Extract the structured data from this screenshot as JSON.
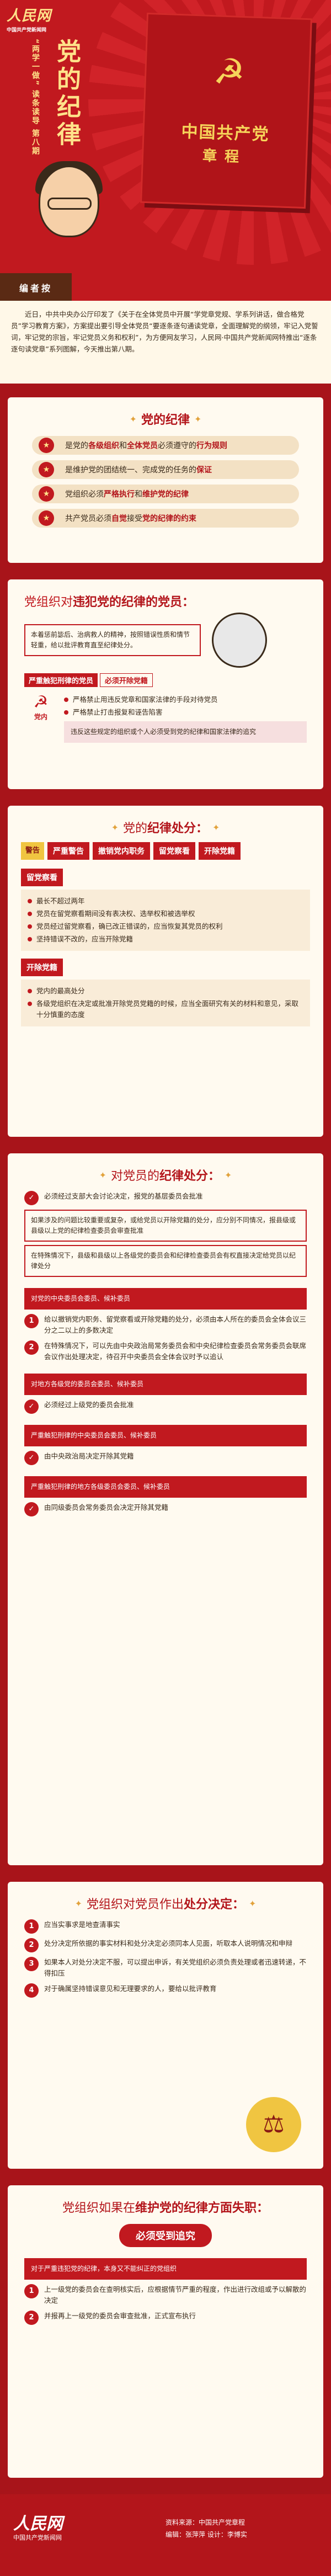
{
  "brand": {
    "name": "人民网",
    "sub": "中国共产党新闻网"
  },
  "series": {
    "label": "“两学一做”",
    "vertical": "读条读导",
    "issue": "第八期"
  },
  "hero": {
    "title": "党的纪律",
    "book_title": "中国共产党",
    "book_sub": "章程",
    "podium": "编者按"
  },
  "intro": "近日，中共中央办公厅印发了《关于在全体党员中开展“学党章党规、学系列讲话，做合格党员”学习教育方案》，方案提出要引导全体党员“要逐条逐句通读党章，全面理解党的纲领，牢记入党誓词，牢记党的宗旨，牢记党员义务和权利”，为方便网友学习，人民网·中国共产党新闻网特推出“逐条逐句读党章”系列图解，今天推出第八期。",
  "s1": {
    "title": "党的纪律",
    "items": [
      {
        "pre": "是党的",
        "b1": "各级组织",
        "mid": "和",
        "b2": "全体党员",
        "post": "必须遵守的",
        "b3": "行为规则"
      },
      {
        "pre": "是维护党的团结统一、完成党的任务的",
        "b1": "保证",
        "mid": "",
        "b2": "",
        "post": "",
        "b3": ""
      },
      {
        "pre": "党组织必须",
        "b1": "严格执行",
        "mid": "和",
        "b2": "维护党的纪律",
        "post": "",
        "b3": ""
      },
      {
        "pre": "共产党员必须",
        "b1": "自觉",
        "mid": "接受",
        "b2": "党的纪律的约束",
        "post": "",
        "b3": ""
      }
    ]
  },
  "s2": {
    "title_pre": "党组织对",
    "title_b": "违犯党的纪律的党员",
    "title_post": "：",
    "desc": "本着惩前毖后、治病救人的精神，按照错误性质和情节轻重，给以批评教育直至纪律处分。",
    "tag1": "严重触犯刑律的党员",
    "tag2": "必须开除党籍",
    "inner": "党内",
    "l1": "严格禁止用违反党章和国家法律的手段对待党员",
    "l2": "严格禁止打击报复和诬告陷害",
    "l3": "违反这些规定的组织或个人必须受到党的纪律和国家法律的追究"
  },
  "s3": {
    "title_pre": "党的",
    "title_b": "纪律处分",
    "title_post": "：",
    "tabs": [
      "警告",
      "严重警告",
      "撤销党内职务",
      "留党察看",
      "开除党籍"
    ],
    "h1": "留党察看",
    "items1": [
      "最长不超过两年",
      "党员在留党察看期间没有表决权、选举权和被选举权",
      "党员经过留党察看，确已改正错误的，应当恢复其党员的权利",
      "坚持错误不改的，应当开除党籍"
    ],
    "h2": "开除党籍",
    "items2": [
      "党内的最高处分",
      "各级党组织在决定或批准开除党员党籍的时候，应当全面研究有关的材料和意见，采取十分慎重的态度"
    ]
  },
  "s4": {
    "title_pre": "对党员的",
    "title_b": "纪律处分",
    "title_post": "：",
    "a1": "必须经过支部大会讨论决定，报党的基层委员会批准",
    "a2": "如果涉及的问题比较重要或复杂，或给党员以开除党籍的处分，应分别不同情况，报县级或县级以上党的纪律检查委员会审查批准",
    "a3": "在特殊情况下，县级和县级以上各级党的委员会和纪律检查委员会有权直接决定给党员以纪律处分",
    "b1": "对党的中央委员会委员、候补委员",
    "b2": "给以撤销党内职务、留党察看或开除党籍的处分，必须由本人所在的委员会全体会议三分之二以上的多数决定",
    "b3": "在特殊情况下，可以先由中央政治局常务委员会和中央纪律检查委员会常务委员会联席会议作出处理决定，待召开中央委员会全体会议时予以追认",
    "c1": "对地方各级党的委员会委员、候补委员",
    "c2": "必须经过上级党的委员会批准",
    "d1": "严重触犯刑律的中央委员会委员、候补委员",
    "d2": "由中央政治局决定开除其党籍",
    "e1": "严重触犯刑律的地方各级委员会委员、候补委员",
    "e2": "由同级委员会常务委员会决定开除其党籍"
  },
  "s5": {
    "title_pre": "党组织对党员作出",
    "title_b": "处分决定",
    "title_post": "：",
    "items": [
      "应当实事求是地查清事实",
      "处分决定所依据的事实材料和处分决定必须同本人见面，听取本人说明情况和申辩",
      "如果本人对处分决定不服，可以提出申诉，有关党组织必须负责处理或者迅速转递，不得扣压",
      "对于确属坚持错误意见和无理要求的人，要给以批评教育"
    ]
  },
  "s6": {
    "title_pre": "党组织如果在",
    "title_b": "维护党的纪律方面失职",
    "title_post": "：",
    "banner": "必须受到追究",
    "red": "对于严重违犯党的纪律，本身又不能纠正的党组织",
    "items": [
      "上一级党的委员会在查明核实后，应根据情节严重的程度，作出进行改组或予以解散的决定",
      "并报再上一级党的委员会审查批准，正式宣布执行"
    ]
  },
  "footer": {
    "logo": "人民网",
    "logo_sub": "中国共产党新闻网",
    "source": "资料来源：中国共产党章程",
    "editor": "编辑：张萍萍  设计：李博实"
  }
}
